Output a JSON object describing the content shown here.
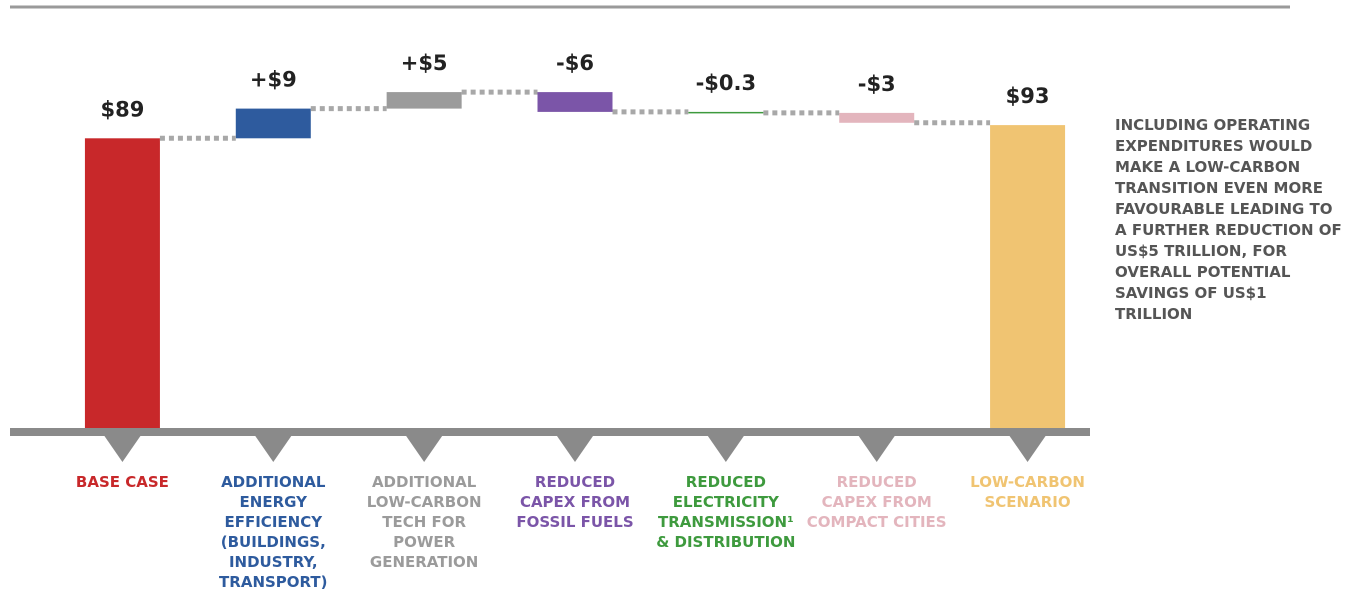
{
  "chart_data": {
    "type": "waterfall",
    "categories": [
      "BASE CASE",
      "ADDITIONAL ENERGY EFFICIENCY (BUILDINGS, INDUSTRY, TRANSPORT)",
      "ADDITIONAL LOW-CARBON TECH FOR POWER GENERATION",
      "REDUCED CAPEX FROM FOSSIL FUELS",
      "REDUCED ELECTRICITY TRANSMISSION¹ & DISTRIBUTION",
      "REDUCED CAPEX FROM COMPACT CITIES",
      "LOW-CARBON SCENARIO"
    ],
    "values": [
      89,
      9,
      5,
      -6,
      -0.3,
      -3,
      93
    ],
    "value_labels": [
      "$89",
      "+$9",
      "+$5",
      "-$6",
      "-$0.3",
      "-$3",
      "$93"
    ],
    "measures": [
      "absolute",
      "relative",
      "relative",
      "relative",
      "relative",
      "relative",
      "total"
    ],
    "colors": [
      "#c8282a",
      "#2e5b9e",
      "#9b9b9b",
      "#7b55a8",
      "#3e9a3e",
      "#e3b5bd",
      "#f0c472"
    ],
    "ylim": [
      0,
      100
    ],
    "annotation": "INCLUDING OPERATING EXPENDITURES WOULD MAKE A LOW-CARBON TRANSITION EVEN MORE FAVOURABLE LEADING TO A FURTHER REDUCTION OF US$5 TRILLION, FOR OVERALL POTENTIAL SAVINGS OF US$1 TRILLION"
  }
}
